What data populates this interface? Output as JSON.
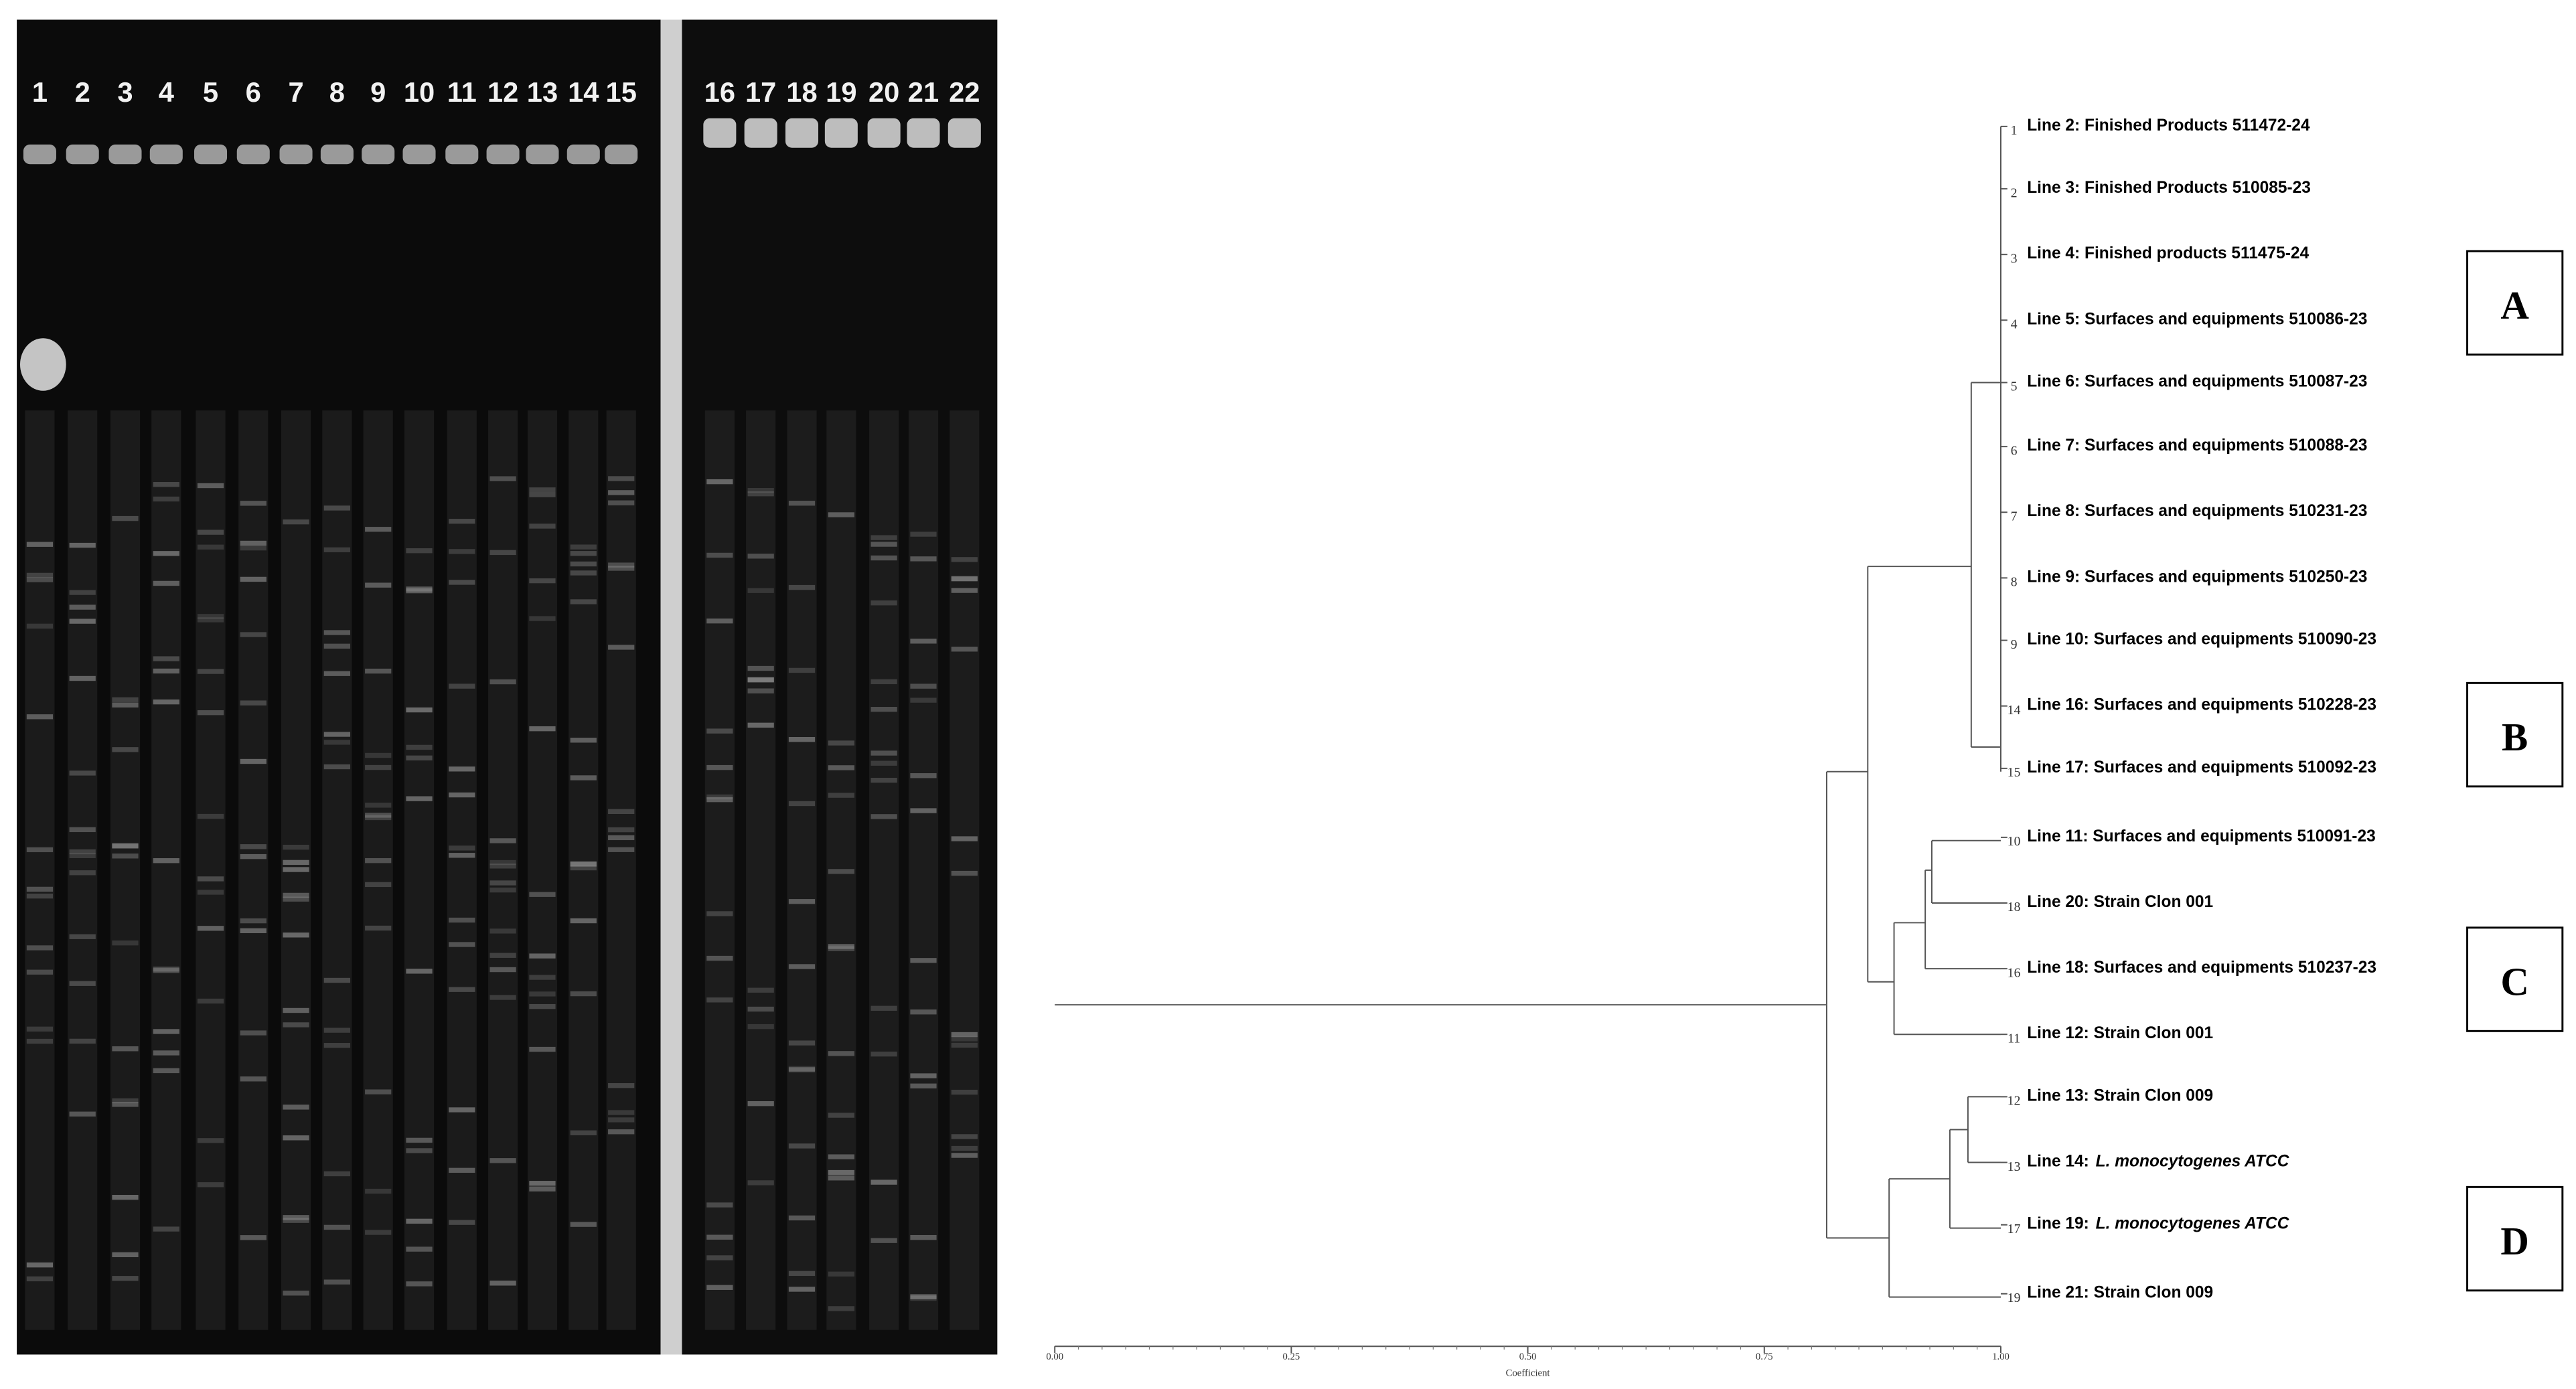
{
  "gel": {
    "lanes": [
      "1",
      "2",
      "3",
      "4",
      "5",
      "6",
      "7",
      "8",
      "9",
      "10",
      "11",
      "12",
      "13",
      "14",
      "15",
      "16",
      "17",
      "18",
      "19",
      "20",
      "21",
      "22"
    ]
  },
  "dendrogram": {
    "leaves": [
      {
        "number": "1",
        "label": "Line 2: Finished Products 511472-24"
      },
      {
        "number": "2",
        "label": "Line 3: Finished Products 510085-23"
      },
      {
        "number": "3",
        "label": "Line 4: Finished products 511475-24"
      },
      {
        "number": "4",
        "label": "Line 5: Surfaces and equipments  510086-23"
      },
      {
        "number": "5",
        "label": "Line 6: Surfaces and equipments  510087-23"
      },
      {
        "number": "6",
        "label": "Line 7: Surfaces and equipments  510088-23"
      },
      {
        "number": "7",
        "label": "Line 8: Surfaces and equipments  510231-23"
      },
      {
        "number": "8",
        "label": "Line 9: Surfaces and equipments  510250-23"
      },
      {
        "number": "9",
        "label": "Line 10: Surfaces and equipments  510090-23"
      },
      {
        "number": "14",
        "label": "Line 16: Surfaces and equipments  510228-23"
      },
      {
        "number": "15",
        "label": "Line 17: Surfaces and equipments  510092-23"
      },
      {
        "number": "10",
        "label": "Line 11:  Surfaces and equipments  510091-23"
      },
      {
        "number": "18",
        "label": "Line 20: Strain Clon 001"
      },
      {
        "number": "16",
        "label": "Line 18: Surfaces and equipments  510237-23"
      },
      {
        "number": "11",
        "label": "Line 12: Strain Clon 001"
      },
      {
        "number": "12",
        "label": "Line 13: Strain Clon 009"
      },
      {
        "number": "13",
        "label": "Line 14:",
        "italic": "L. monocytogenes  ATCC"
      },
      {
        "number": "17",
        "label": "Line 19:",
        "italic": "L. monocytogenes  ATCC"
      },
      {
        "number": "19",
        "label": "Line 21: Strain Clon 009"
      }
    ],
    "axis": {
      "label": "Coefficient",
      "ticks": [
        {
          "value": 0,
          "label": "0.00"
        },
        {
          "value": 0.25,
          "label": "0.25"
        },
        {
          "value": 0.5,
          "label": "0.50"
        },
        {
          "value": 0.75,
          "label": "0.75"
        },
        {
          "value": 1,
          "label": "1.00"
        }
      ]
    },
    "clusters": [
      "A",
      "B",
      "C",
      "D"
    ]
  }
}
